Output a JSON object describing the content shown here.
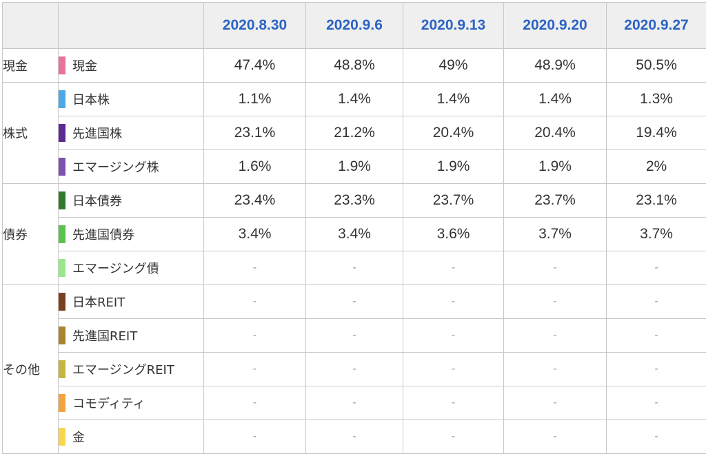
{
  "dates": [
    "2020.8.30",
    "2020.9.6",
    "2020.9.13",
    "2020.9.20",
    "2020.9.27"
  ],
  "groups": [
    {
      "label": "現金",
      "rows": [
        {
          "asset": "現金",
          "color": "#e8739c",
          "values": [
            "47.4%",
            "48.8%",
            "49%",
            "48.9%",
            "50.5%"
          ]
        }
      ]
    },
    {
      "label": "株式",
      "rows": [
        {
          "asset": "日本株",
          "color": "#4aa9e6",
          "values": [
            "1.1%",
            "1.4%",
            "1.4%",
            "1.4%",
            "1.3%"
          ]
        },
        {
          "asset": "先進国株",
          "color": "#5c2b92",
          "values": [
            "23.1%",
            "21.2%",
            "20.4%",
            "20.4%",
            "19.4%"
          ]
        },
        {
          "asset": "エマージング株",
          "color": "#7e52b0",
          "values": [
            "1.6%",
            "1.9%",
            "1.9%",
            "1.9%",
            "2%"
          ]
        }
      ]
    },
    {
      "label": "債券",
      "rows": [
        {
          "asset": "日本債券",
          "color": "#2f7a2a",
          "values": [
            "23.4%",
            "23.3%",
            "23.7%",
            "23.7%",
            "23.1%"
          ]
        },
        {
          "asset": "先進国債券",
          "color": "#5cc24e",
          "values": [
            "3.4%",
            "3.4%",
            "3.6%",
            "3.7%",
            "3.7%"
          ]
        },
        {
          "asset": "エマージング債",
          "color": "#98e88a",
          "values": [
            "-",
            "-",
            "-",
            "-",
            "-"
          ]
        }
      ]
    },
    {
      "label": "その他",
      "rows": [
        {
          "asset": "日本REIT",
          "color": "#7a3f1e",
          "values": [
            "-",
            "-",
            "-",
            "-",
            "-"
          ]
        },
        {
          "asset": "先進国REIT",
          "color": "#a9832e",
          "values": [
            "-",
            "-",
            "-",
            "-",
            "-"
          ]
        },
        {
          "asset": "エマージングREIT",
          "color": "#c6b53e",
          "values": [
            "-",
            "-",
            "-",
            "-",
            "-"
          ]
        },
        {
          "asset": "コモディティ",
          "color": "#f3a43f",
          "values": [
            "-",
            "-",
            "-",
            "-",
            "-"
          ]
        },
        {
          "asset": "金",
          "color": "#f8d64e",
          "values": [
            "-",
            "-",
            "-",
            "-",
            "-"
          ]
        }
      ]
    }
  ]
}
